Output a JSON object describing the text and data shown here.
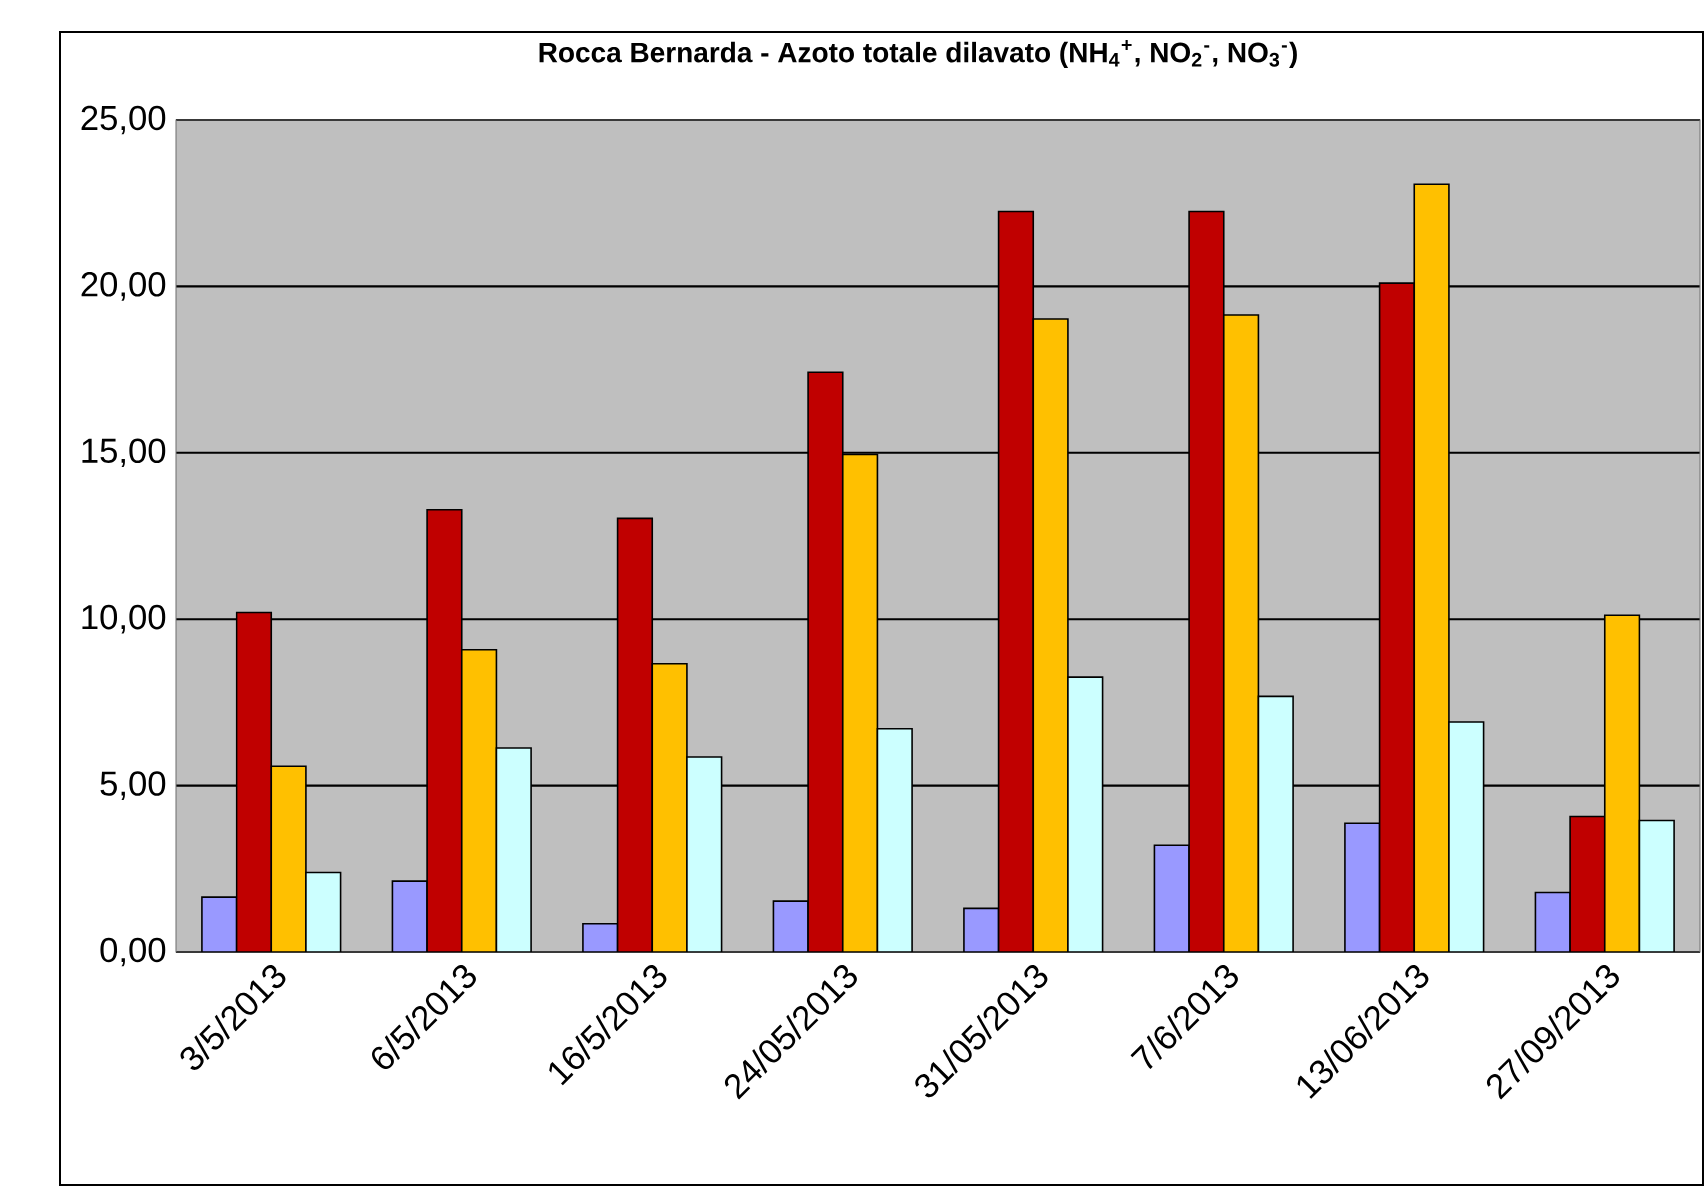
{
  "chart_data": {
    "type": "bar",
    "title": "Rocca Bernarda - Azoto totale dilavato (NH$_{4}$$^{+}$, NO$_{2}$$^{-}$, NO$_{3}$$^{-}$)",
    "categories": [
      "3/5/2013",
      "6/5/2013",
      "16/5/2013",
      "24/05/2013",
      "31/05/2013",
      "7/6/2013",
      "13/06/2013",
      "27/09/2013"
    ],
    "series": [
      {
        "color": "#9999ff",
        "values": [
          1.65,
          2.13,
          0.85,
          1.53,
          1.31,
          3.21,
          3.87,
          1.79
        ]
      },
      {
        "color": "#c00000",
        "values": [
          10.2,
          13.29,
          13.03,
          17.42,
          22.25,
          22.25,
          20.1,
          4.07
        ]
      },
      {
        "color": "#ffc000",
        "values": [
          5.58,
          9.08,
          8.66,
          14.95,
          19.02,
          19.14,
          23.07,
          10.12
        ]
      },
      {
        "color": "#ccffff",
        "values": [
          2.39,
          6.13,
          5.86,
          6.71,
          8.26,
          7.68,
          6.91,
          3.95
        ]
      }
    ],
    "ylim": [
      0,
      25
    ],
    "yticks": [
      {
        "value": 0,
        "label": "0,00"
      },
      {
        "value": 5,
        "label": "5,00"
      },
      {
        "value": 10,
        "label": "10,00"
      },
      {
        "value": 15,
        "label": "15,00"
      },
      {
        "value": 20,
        "label": "20,00"
      },
      {
        "value": 25,
        "label": "25,00"
      }
    ],
    "grid": "y"
  }
}
